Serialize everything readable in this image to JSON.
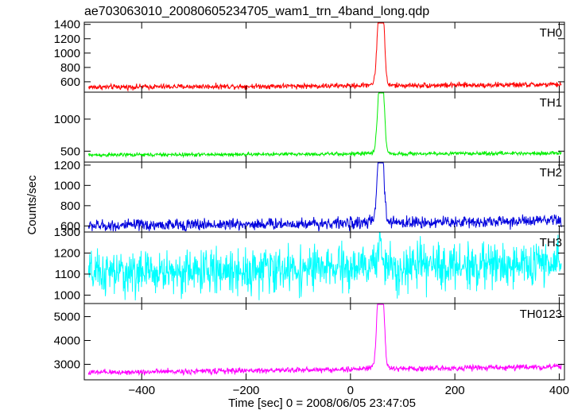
{
  "chart_data": {
    "type": "line",
    "title": "ae703063010_20080605234705_wam1_trn_4band_long.qdp",
    "xlabel": "Time [sec] 0 = 2008/06/05 23:47:05",
    "ylabel": "Counts/sec",
    "xlim": [
      -510,
      410
    ],
    "x_ticks": [
      -400,
      -200,
      0,
      200,
      400
    ],
    "x_tick_labels": [
      "−400",
      "−200",
      "0",
      "200",
      "400"
    ],
    "panels": [
      {
        "name": "TH0",
        "color": "#ff0000",
        "ylim": [
          455,
          1430
        ],
        "y_ticks": [
          600,
          800,
          1000,
          1200,
          1400
        ],
        "baseline_start": 525,
        "baseline_end": 560,
        "noise": 28,
        "peaks": [
          {
            "x": 52,
            "value": 1000
          },
          {
            "x": 57,
            "value": 1410
          },
          {
            "x": 60,
            "value": 1200
          },
          {
            "x": 64,
            "value": 1010
          }
        ]
      },
      {
        "name": "TH1",
        "color": "#00ee00",
        "ylim": [
          330,
          1420
        ],
        "y_ticks": [
          500,
          1000
        ],
        "baseline_start": 440,
        "baseline_end": 470,
        "noise": 22,
        "peaks": [
          {
            "x": 52,
            "value": 800
          },
          {
            "x": 57,
            "value": 1370
          },
          {
            "x": 60,
            "value": 1130
          },
          {
            "x": 64,
            "value": 930
          }
        ]
      },
      {
        "name": "TH2",
        "color": "#0000dd",
        "ylim": [
          540,
          1230
        ],
        "y_ticks": [
          600,
          800,
          1000,
          1200
        ],
        "baseline_start": 600,
        "baseline_end": 650,
        "noise": 45,
        "peaks": [
          {
            "x": 52,
            "value": 900
          },
          {
            "x": 57,
            "value": 1240
          },
          {
            "x": 60,
            "value": 1050
          },
          {
            "x": 64,
            "value": 820
          }
        ]
      },
      {
        "name": "TH3",
        "color": "#00ffff",
        "ylim": [
          960,
          1300
        ],
        "y_ticks": [
          1000,
          1100,
          1200,
          1300
        ],
        "baseline_start": 1100,
        "baseline_end": 1150,
        "noise": 80,
        "peaks": [
          {
            "x": 57,
            "value": 1260
          }
        ]
      },
      {
        "name": "TH0123",
        "color": "#ff00ff",
        "ylim": [
          2350,
          5550
        ],
        "y_ticks": [
          3000,
          4000,
          5000
        ],
        "baseline_start": 2650,
        "baseline_end": 2900,
        "noise": 90,
        "peaks": [
          {
            "x": 52,
            "value": 4500
          },
          {
            "x": 57,
            "value": 5450
          },
          {
            "x": 60,
            "value": 4900
          },
          {
            "x": 64,
            "value": 3900
          }
        ]
      }
    ]
  }
}
